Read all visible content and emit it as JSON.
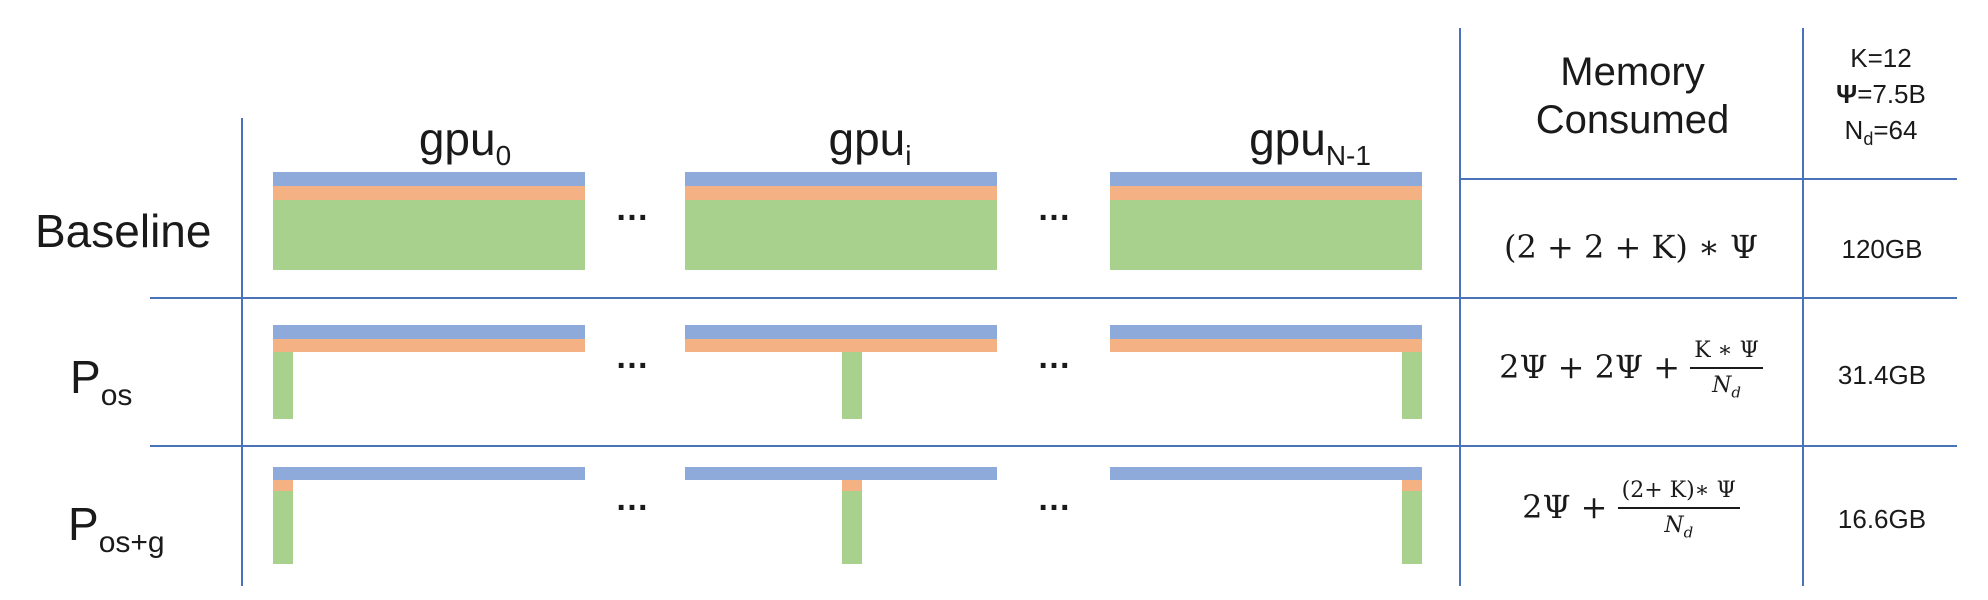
{
  "columns": {
    "gpu_first": {
      "base": "gpu",
      "sub": "0"
    },
    "gpu_middle": {
      "base": "gpu",
      "sub": "i"
    },
    "gpu_last": {
      "base": "gpu",
      "sub": "N-1"
    }
  },
  "ellipsis": "…",
  "table_header": {
    "memory_line1": "Memory",
    "memory_line2": "Consumed",
    "k_param": "K=12",
    "psi_symbol": "Ψ",
    "psi_value": "=7.5B",
    "nd_base": "N",
    "nd_sub": "d",
    "nd_value": "=64"
  },
  "rows": [
    {
      "label": "Baseline",
      "formula": "(2 + 2 + K) ∗ Ψ",
      "memory": "120GB"
    },
    {
      "label_base": "P",
      "label_sub": "os",
      "formula_prefix": "2Ψ + 2Ψ +",
      "formula_num": "K ∗ Ψ",
      "formula_den_base": "N",
      "formula_den_sub": "d",
      "memory": "31.4GB"
    },
    {
      "label_base": "P",
      "label_sub": "os+g",
      "formula_prefix": "2Ψ +",
      "formula_num": "(2+ K)∗ Ψ",
      "formula_den_base": "N",
      "formula_den_sub": "d",
      "memory": "16.6GB"
    }
  ],
  "colors": {
    "parameters": "#8eaadb",
    "gradients": "#f4b183",
    "optimizer_states": "#a9d18e",
    "grid_lines": "#4a72b8"
  }
}
